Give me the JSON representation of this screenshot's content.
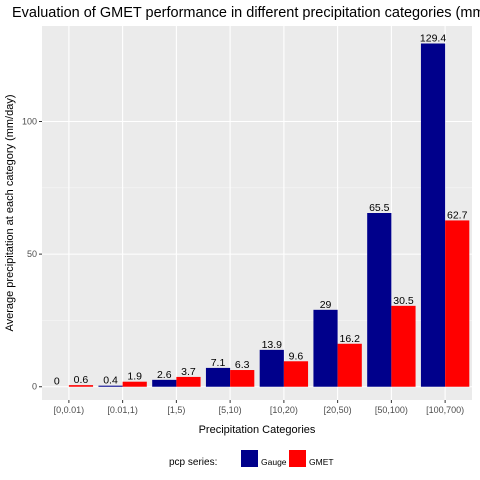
{
  "chart_data": {
    "type": "bar",
    "title": "Evaluation of GMET performance in different precipitation categories (mm/day)",
    "xlabel": "Precipitation Categories",
    "ylabel": "Average precipitation at each category (mm/day)",
    "categories": [
      "[0,0.01)",
      "[0.01,1)",
      "[1,5)",
      "[5,10)",
      "[10,20)",
      "[20,50)",
      "[50,100)",
      "[100,700)"
    ],
    "series": [
      {
        "name": "Gauge",
        "values": [
          0,
          0.4,
          2.6,
          7.1,
          13.9,
          29,
          65.5,
          129.4
        ],
        "labels": [
          "0",
          "0.4",
          "2.6",
          "7.1",
          "13.9",
          "29",
          "65.5",
          "129.4"
        ],
        "color": "#00008B"
      },
      {
        "name": "GMET",
        "values": [
          0.6,
          1.9,
          3.7,
          6.3,
          9.6,
          16.2,
          30.5,
          62.7
        ],
        "labels": [
          "0.6",
          "1.9",
          "3.7",
          "6.3",
          "9.6",
          "16.2",
          "30.5",
          "62.7"
        ],
        "color": "#FF0000"
      }
    ],
    "ylim": [
      -5,
      136
    ],
    "yticks": [
      0,
      50,
      100
    ],
    "ytick_labels": [
      "0",
      "50",
      "100"
    ],
    "grid": true,
    "legend": {
      "title": "pcp series:",
      "position": "bottom"
    },
    "panel_background": "#EBEBEB"
  }
}
